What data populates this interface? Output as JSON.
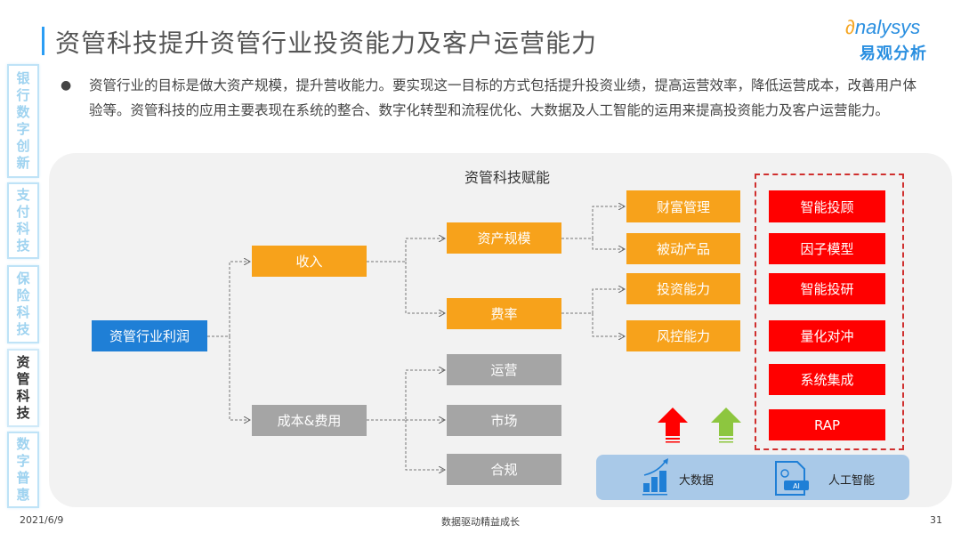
{
  "header": {
    "title": "资管科技提升资管行业投资能力及客户运营能力",
    "logo_text": "Analysys",
    "logo_cn": "易观分析"
  },
  "sidebar": {
    "tabs": [
      {
        "label": "银行数字创新",
        "active": false
      },
      {
        "label": "支付科技",
        "active": false
      },
      {
        "label": "保险科技",
        "active": false
      },
      {
        "label": "资管科技",
        "active": true
      },
      {
        "label": "数字普惠",
        "active": false
      }
    ]
  },
  "intro": "资管行业的目标是做大资产规模，提升营收能力。要实现这一目标的方式包括提升投资业绩，提高运营效率，降低运营成本，改善用户体验等。资管科技的应用主要表现在系统的整合、数字化转型和流程优化、大数据及人工智能的运用来提高投资能力及客户运营能力。",
  "diagram": {
    "title": "资管科技赋能",
    "root": "资管行业利润",
    "level1": {
      "income": "收入",
      "cost": "成本&费用"
    },
    "level2": {
      "asset_scale": "资产规模",
      "fee_rate": "费率",
      "operation": "运营",
      "market": "市场",
      "compliance": "合规"
    },
    "level3": {
      "wealth": "财富管理",
      "passive": "被动产品",
      "invest": "投资能力",
      "risk": "风控能力"
    },
    "tech": [
      "智能投顾",
      "因子模型",
      "智能投研",
      "量化对冲",
      "系统集成",
      "RAP"
    ],
    "foundation": {
      "big_data": "大数据",
      "ai": "人工智能",
      "ai_badge": "AI"
    },
    "colors": {
      "orange": "#f7a21b",
      "gray": "#a5a5a5",
      "red": "#ff0000",
      "blue": "#1f7fd6",
      "green": "#8dc63f"
    }
  },
  "footer": {
    "date": "2021/6/9",
    "slogan": "数据驱动精益成长",
    "page": "31"
  }
}
